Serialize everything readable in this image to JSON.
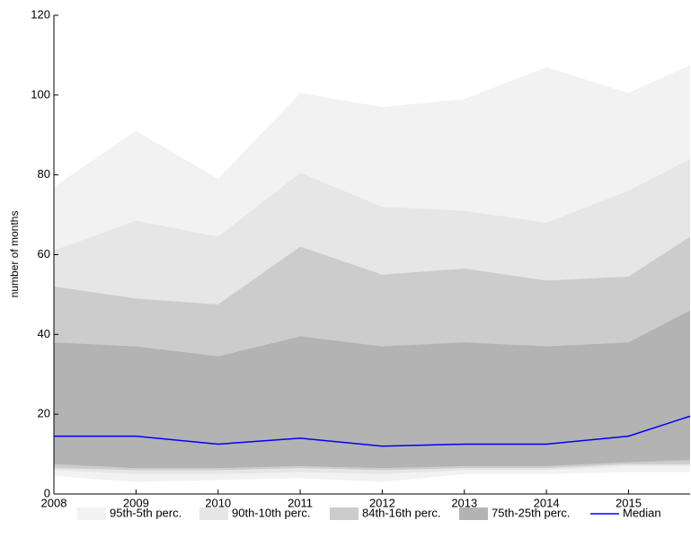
{
  "chart_data": {
    "type": "fan",
    "y_label": "number of months",
    "x": [
      2008,
      2009,
      2010,
      2011,
      2012,
      2013,
      2014,
      2015,
      2015.75
    ],
    "xlim": [
      2008,
      2015.75
    ],
    "xticks": [
      2008,
      2009,
      2010,
      2011,
      2012,
      2013,
      2014,
      2015
    ],
    "ylim": [
      0,
      120
    ],
    "yticks": [
      0,
      20,
      40,
      60,
      80,
      100,
      120
    ],
    "series": [
      {
        "name": "95th-5th perc.",
        "color": "#f2f2f2",
        "upper": [
          77,
          91,
          79,
          100.5,
          97,
          99,
          107,
          100.5,
          107.5
        ],
        "lower": [
          4.5,
          3,
          3.5,
          4,
          3,
          5,
          5,
          5.5,
          5.5
        ]
      },
      {
        "name": "90th-10th perc.",
        "color": "#e6e6e6",
        "upper": [
          61,
          68.5,
          64.5,
          80.5,
          72,
          71,
          68,
          76,
          84
        ],
        "lower": [
          6,
          5,
          5,
          5.5,
          5,
          6,
          6,
          7,
          7
        ]
      },
      {
        "name": "84th-16th perc.",
        "color": "#cccccc",
        "upper": [
          52,
          49,
          47.5,
          62,
          55,
          56.5,
          53.5,
          54.5,
          64.5
        ],
        "lower": [
          6.5,
          6,
          6,
          6.5,
          6,
          6.5,
          6.5,
          7.5,
          7.5
        ]
      },
      {
        "name": "75th-25th perc.",
        "color": "#b3b3b3",
        "upper": [
          38,
          37,
          34.5,
          39.5,
          37,
          38,
          37,
          38,
          46
        ],
        "lower": [
          7.5,
          6.5,
          6.5,
          7,
          6.5,
          7,
          7,
          8,
          8.5
        ]
      },
      {
        "name": "Median",
        "color": "#0000ff",
        "values": [
          14.5,
          14.5,
          12.5,
          14,
          12,
          12.5,
          12.5,
          14.5,
          19.5
        ]
      }
    ]
  }
}
